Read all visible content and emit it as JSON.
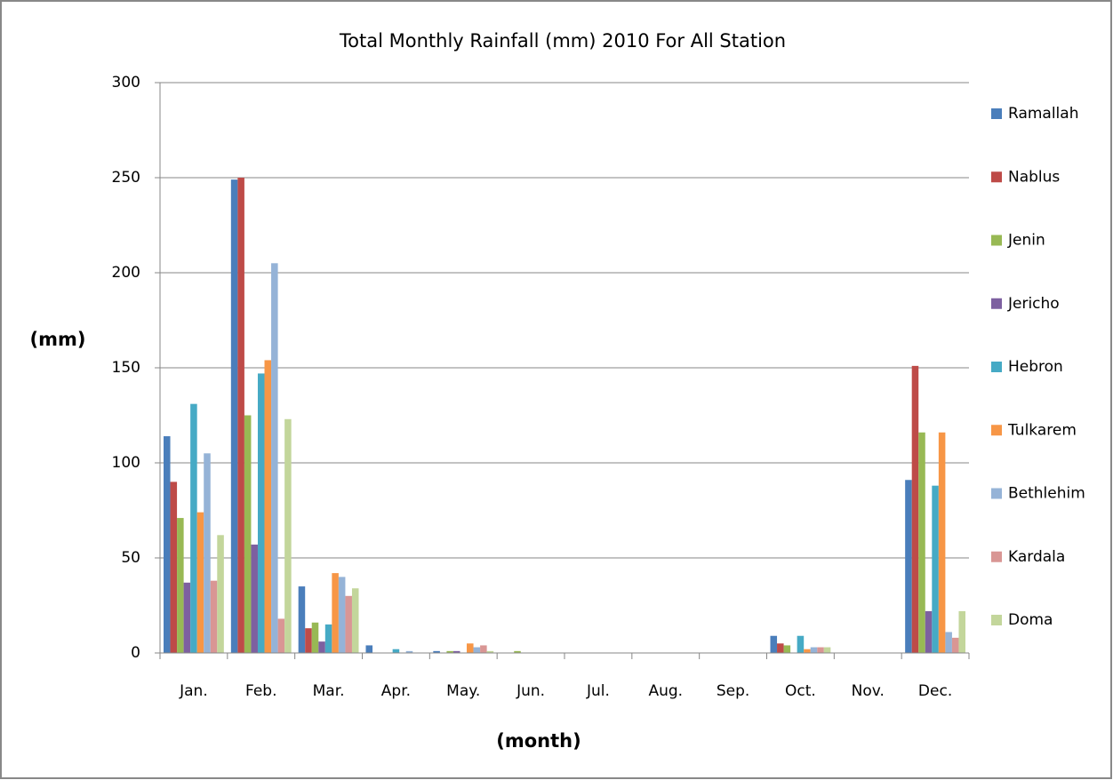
{
  "chart_data": {
    "type": "bar",
    "title": "Total Monthly Rainfall (mm) 2010 For All Station",
    "y_label": "(mm)",
    "x_label": "(month)",
    "categories": [
      "Jan.",
      "Feb.",
      "Mar.",
      "Apr.",
      "May.",
      "Jun.",
      "Jul.",
      "Aug.",
      "Sep.",
      "Oct.",
      "Nov.",
      "Dec."
    ],
    "series": [
      {
        "name": "Ramallah",
        "color": "#4a7ebb",
        "values": [
          114,
          249,
          35,
          4,
          1,
          0,
          0,
          0,
          0,
          9,
          0,
          91
        ]
      },
      {
        "name": "Nablus",
        "color": "#be4b48",
        "values": [
          90,
          250,
          13,
          0,
          0,
          0,
          0,
          0,
          0,
          5,
          0,
          151
        ]
      },
      {
        "name": "Jenin",
        "color": "#98b954",
        "values": [
          71,
          125,
          16,
          0,
          1,
          1,
          0,
          0,
          0,
          4,
          0,
          116
        ]
      },
      {
        "name": "Jericho",
        "color": "#7d60a0",
        "values": [
          37,
          57,
          6,
          0,
          1,
          0,
          0,
          0,
          0,
          0,
          0,
          22
        ]
      },
      {
        "name": "Hebron",
        "color": "#46aac5",
        "values": [
          131,
          147,
          15,
          2,
          0,
          0,
          0,
          0,
          0,
          9,
          0,
          88
        ]
      },
      {
        "name": "Tulkarem",
        "color": "#f79646",
        "values": [
          74,
          154,
          42,
          0,
          5,
          0,
          0,
          0,
          0,
          2,
          0,
          116
        ]
      },
      {
        "name": "Bethlehim",
        "color": "#95b3d7",
        "values": [
          105,
          205,
          40,
          1,
          3,
          0,
          0,
          0,
          0,
          3,
          0,
          11
        ]
      },
      {
        "name": "Kardala",
        "color": "#d99694",
        "values": [
          38,
          18,
          30,
          0,
          4,
          0,
          0,
          0,
          0,
          3,
          0,
          8
        ]
      },
      {
        "name": "Doma",
        "color": "#c3d69b",
        "values": [
          62,
          123,
          34,
          0,
          1,
          0,
          0,
          0,
          0,
          3,
          0,
          22
        ]
      }
    ],
    "ylim": [
      0,
      300
    ],
    "yticks": [
      0,
      50,
      100,
      150,
      200,
      250,
      300
    ],
    "grid": true,
    "legend": "right"
  }
}
